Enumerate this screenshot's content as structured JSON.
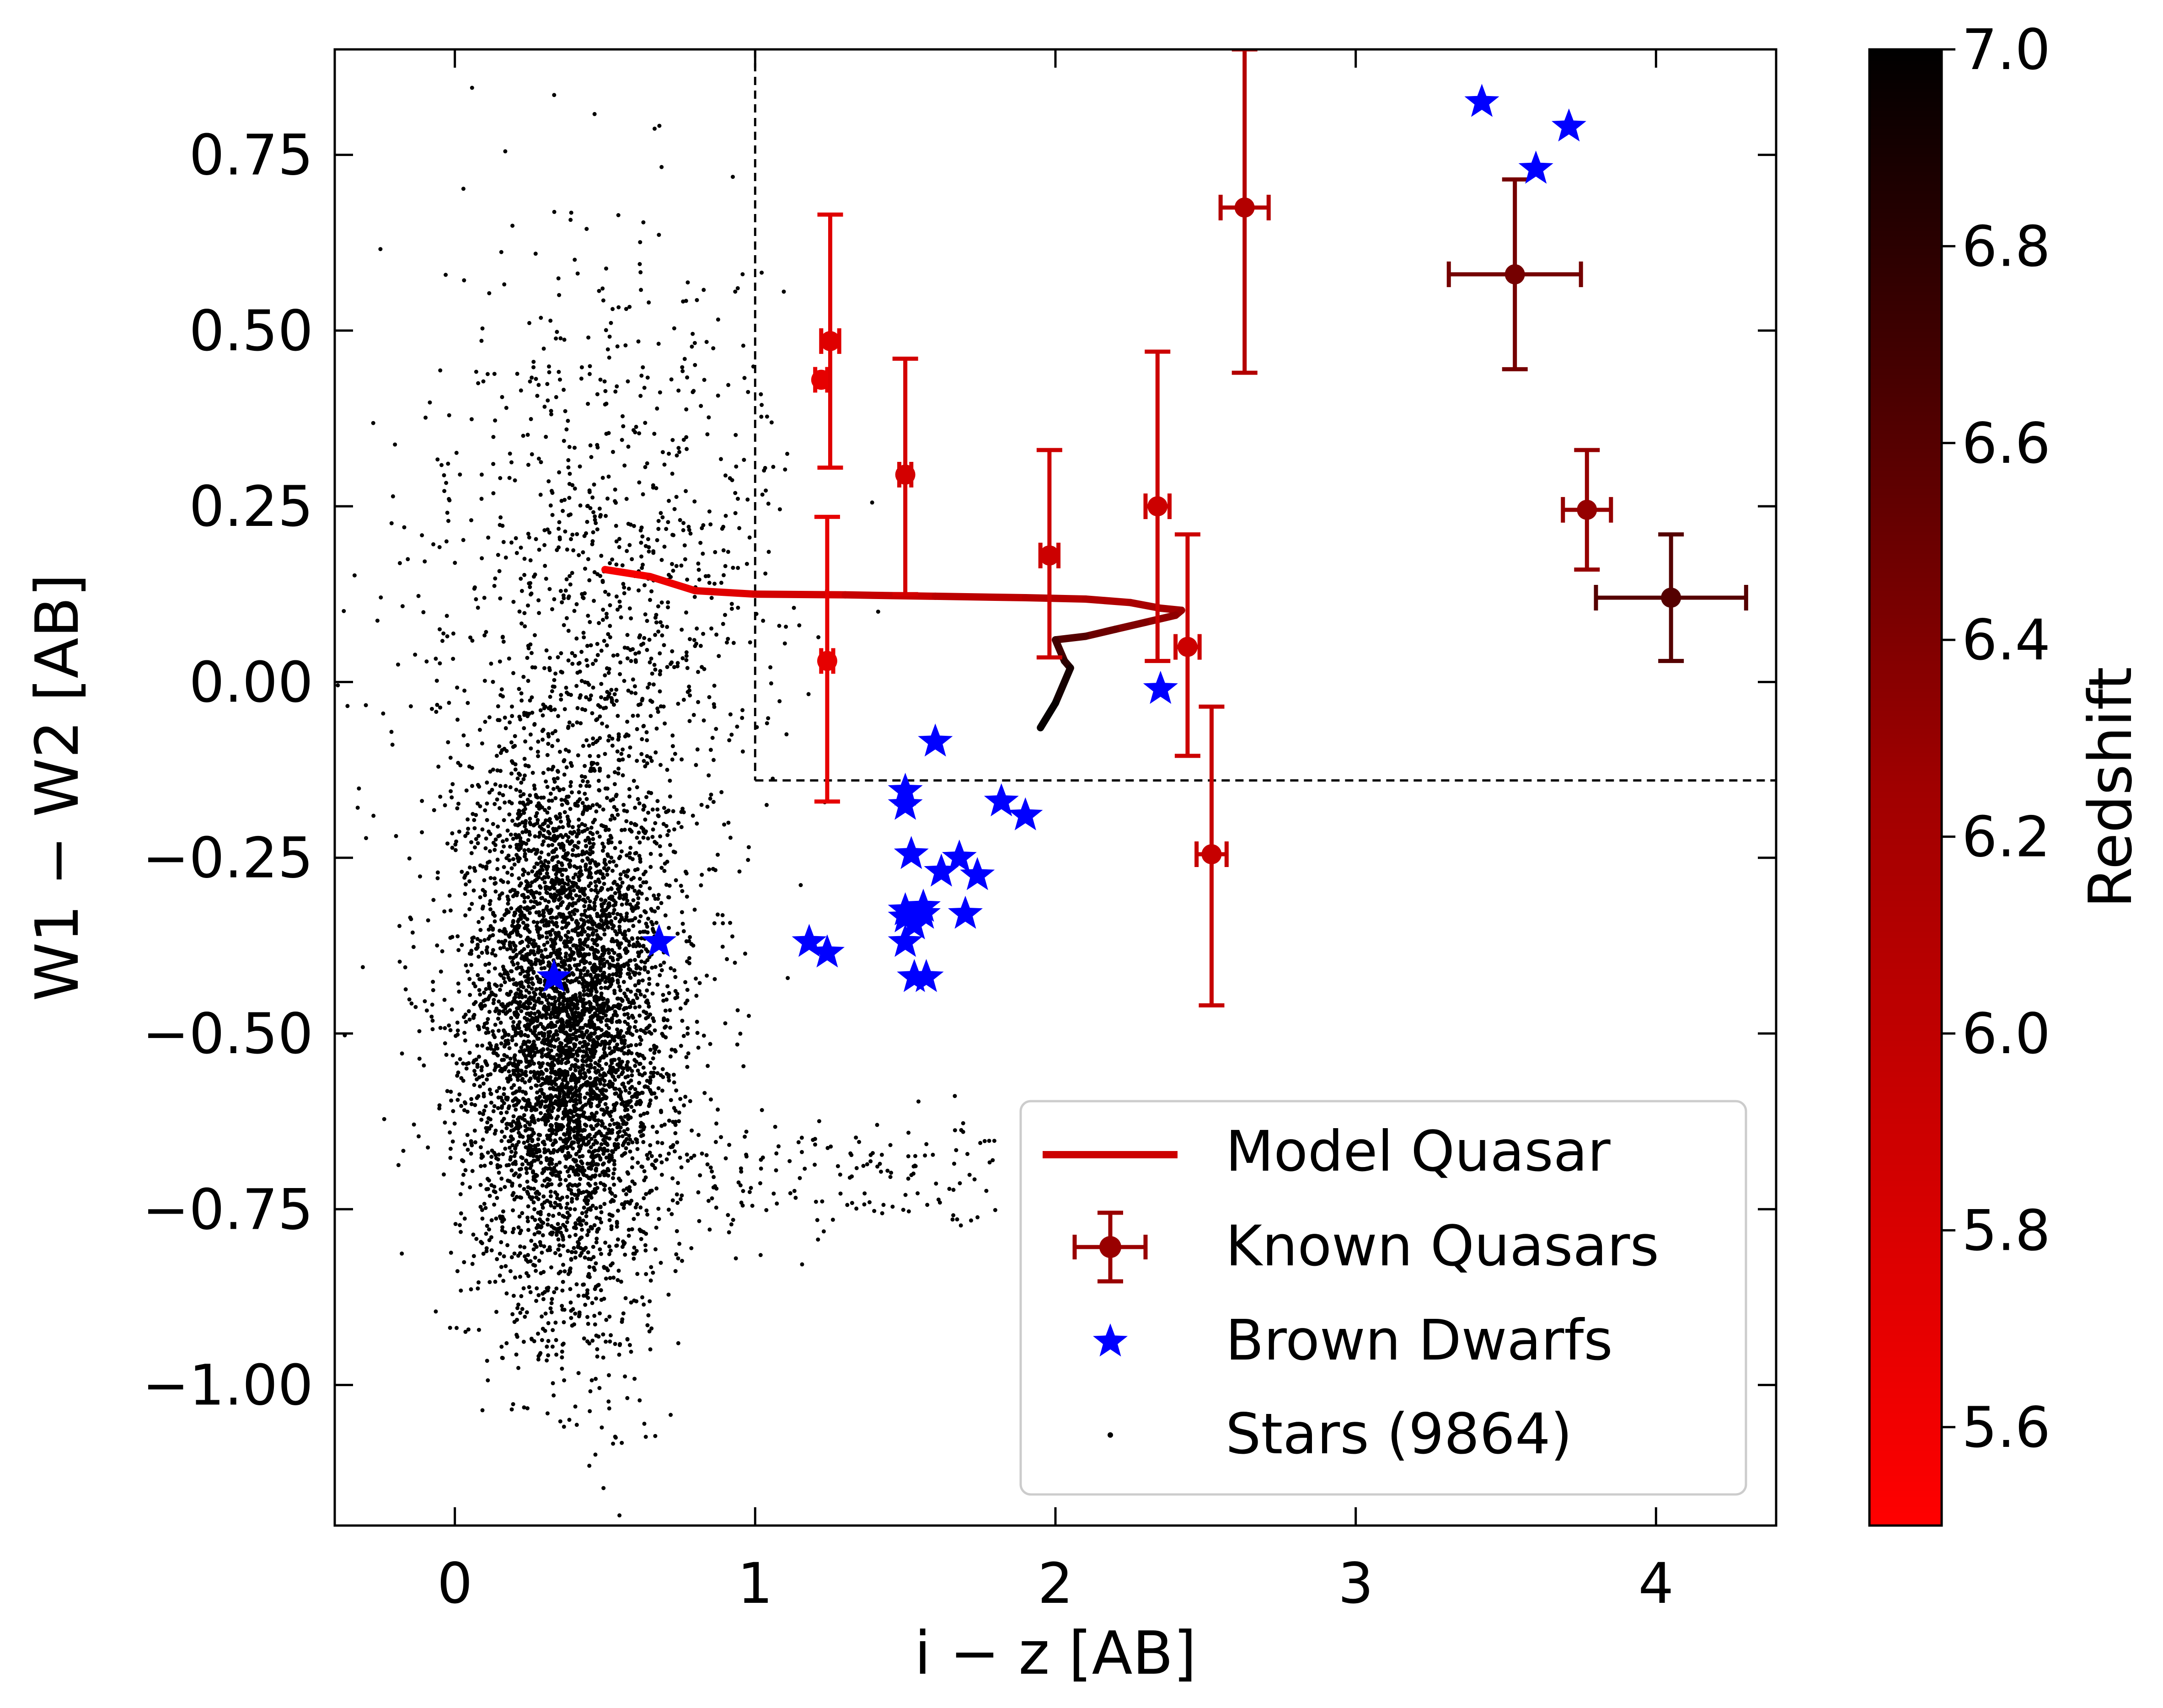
{
  "chart_data": {
    "type": "scatter",
    "xlabel": "i − z [AB]",
    "ylabel": "W1 − W2 [AB]",
    "xlim": [
      -0.4,
      4.4
    ],
    "ylim": [
      -1.2,
      0.9
    ],
    "x_ticks": [
      0,
      1,
      2,
      3,
      4
    ],
    "y_ticks": [
      -1.0,
      -0.75,
      -0.5,
      -0.25,
      0.0,
      0.25,
      0.5,
      0.75
    ],
    "x_tick_labels": [
      "0",
      "1",
      "2",
      "3",
      "4"
    ],
    "y_tick_labels": [
      "−1.00",
      "−0.75",
      "−0.50",
      "−0.25",
      "0.00",
      "0.25",
      "0.50",
      "0.75"
    ],
    "grid": false,
    "cuts": {
      "vertical_x": 1.0,
      "horizontal_y": -0.14
    },
    "colorbar": {
      "label": "Redshift",
      "range": [
        5.5,
        7.0
      ],
      "ticks": [
        5.6,
        5.8,
        6.0,
        6.2,
        6.4,
        6.6,
        6.8,
        7.0
      ],
      "tick_labels": [
        "5.6",
        "5.8",
        "6.0",
        "6.2",
        "6.4",
        "6.6",
        "6.8",
        "7.0"
      ],
      "low_color": "#ff0000",
      "high_color": "#000000"
    },
    "legend": {
      "position": "lower-right",
      "entries": [
        "Model Quasar",
        "Known Quasars",
        "Brown Dwarfs",
        "Stars (9864)"
      ]
    },
    "model_quasar": {
      "name": "Model Quasar",
      "x": [
        0.5,
        0.65,
        0.8,
        1.0,
        1.3,
        1.6,
        1.9,
        2.1,
        2.25,
        2.35,
        2.42,
        2.4,
        2.3,
        2.2,
        2.1,
        2.0,
        2.03,
        2.05,
        2.0,
        1.95
      ],
      "y": [
        0.16,
        0.15,
        0.13,
        0.125,
        0.124,
        0.122,
        0.12,
        0.118,
        0.113,
        0.105,
        0.102,
        0.095,
        0.085,
        0.075,
        0.065,
        0.06,
        0.03,
        0.02,
        -0.03,
        -0.065
      ],
      "z": [
        5.55,
        5.6,
        5.7,
        5.8,
        5.9,
        6.0,
        6.05,
        6.1,
        6.15,
        6.2,
        6.25,
        6.3,
        6.35,
        6.45,
        6.55,
        6.65,
        6.75,
        6.85,
        6.95,
        7.0
      ]
    },
    "known_quasars": {
      "name": "Known Quasars",
      "points": [
        {
          "x": 1.22,
          "y": 0.43,
          "xerr": 0.02,
          "yerr_lo": 0.0,
          "yerr_hi": 0.0,
          "z": 5.7
        },
        {
          "x": 1.25,
          "y": 0.485,
          "xerr": 0.03,
          "yerr_lo": 0.18,
          "yerr_hi": 0.18,
          "z": 5.75
        },
        {
          "x": 1.24,
          "y": 0.03,
          "xerr": 0.02,
          "yerr_lo": 0.2,
          "yerr_hi": 0.205,
          "z": 5.7
        },
        {
          "x": 1.5,
          "y": 0.295,
          "xerr": 0.02,
          "yerr_lo": 0.17,
          "yerr_hi": 0.165,
          "z": 5.85
        },
        {
          "x": 1.98,
          "y": 0.18,
          "xerr": 0.03,
          "yerr_lo": 0.145,
          "yerr_hi": 0.15,
          "z": 5.9
        },
        {
          "x": 2.34,
          "y": 0.25,
          "xerr": 0.04,
          "yerr_lo": 0.22,
          "yerr_hi": 0.22,
          "z": 5.9
        },
        {
          "x": 2.44,
          "y": 0.05,
          "xerr": 0.04,
          "yerr_lo": 0.155,
          "yerr_hi": 0.16,
          "z": 5.9
        },
        {
          "x": 2.52,
          "y": -0.245,
          "xerr": 0.05,
          "yerr_lo": 0.215,
          "yerr_hi": 0.21,
          "z": 5.95
        },
        {
          "x": 2.63,
          "y": 0.675,
          "xerr": 0.08,
          "yerr_lo": 0.235,
          "yerr_hi": 0.225,
          "z": 6.1
        },
        {
          "x": 3.53,
          "y": 0.58,
          "xerr": 0.22,
          "yerr_lo": 0.135,
          "yerr_hi": 0.135,
          "z": 6.45
        },
        {
          "x": 3.77,
          "y": 0.245,
          "xerr": 0.08,
          "yerr_lo": 0.085,
          "yerr_hi": 0.085,
          "z": 6.3
        },
        {
          "x": 4.05,
          "y": 0.12,
          "xerr": 0.25,
          "yerr_lo": 0.09,
          "yerr_hi": 0.09,
          "z": 6.6
        }
      ]
    },
    "brown_dwarfs": {
      "name": "Brown Dwarfs",
      "x": [
        0.33,
        0.68,
        1.18,
        1.24,
        1.5,
        1.5,
        1.52,
        1.6,
        1.5,
        1.62,
        1.68,
        1.74,
        1.82,
        1.9,
        1.5,
        1.56,
        1.53,
        1.5,
        1.56,
        1.7,
        1.53,
        1.57,
        2.35,
        3.42,
        3.6,
        3.71
      ],
      "y": [
        -0.42,
        -0.37,
        -0.37,
        -0.385,
        -0.155,
        -0.175,
        -0.245,
        -0.085,
        -0.325,
        -0.27,
        -0.25,
        -0.275,
        -0.17,
        -0.19,
        -0.37,
        -0.32,
        -0.345,
        -0.335,
        -0.33,
        -0.33,
        -0.42,
        -0.42,
        -0.01,
        0.825,
        0.73,
        0.79
      ],
      "color": "#0000ff"
    },
    "stars": {
      "name": "Stars (9864)",
      "count": 9864,
      "color": "#000000",
      "distribution": {
        "core_x_mean": 0.38,
        "core_x_std": 0.17,
        "core_y_mean": -0.5,
        "core_y_std": 0.2,
        "tail_y_mean": 0.05,
        "tail_y_std": 0.28
      }
    }
  }
}
